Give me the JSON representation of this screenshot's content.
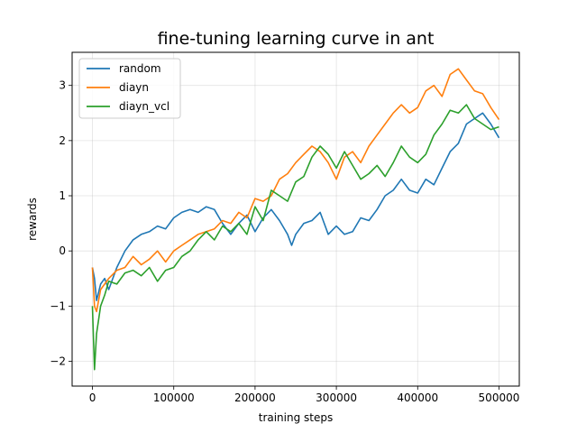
{
  "chart_data": {
    "type": "line",
    "title": "fine-tuning learning curve in ant",
    "xlabel": "training steps",
    "ylabel": "rewards",
    "xlim": [
      -25000,
      525000
    ],
    "ylim": [
      -2.45,
      3.6
    ],
    "xticks": [
      0,
      100000,
      200000,
      300000,
      400000,
      500000
    ],
    "yticks": [
      -2,
      -1,
      0,
      1,
      2,
      3
    ],
    "grid": true,
    "legend_position": "top-left",
    "series": [
      {
        "name": "random",
        "color": "#1f77b4",
        "x": [
          0,
          2500,
          5000,
          10000,
          15000,
          20000,
          30000,
          40000,
          50000,
          60000,
          70000,
          80000,
          90000,
          100000,
          110000,
          120000,
          130000,
          140000,
          150000,
          160000,
          170000,
          180000,
          190000,
          200000,
          210000,
          220000,
          230000,
          240000,
          245000,
          250000,
          260000,
          270000,
          280000,
          290000,
          300000,
          310000,
          320000,
          330000,
          340000,
          350000,
          360000,
          370000,
          380000,
          390000,
          400000,
          410000,
          420000,
          430000,
          440000,
          450000,
          460000,
          470000,
          480000,
          490000,
          500000
        ],
        "y": [
          -0.3,
          -0.5,
          -0.9,
          -0.6,
          -0.5,
          -0.7,
          -0.3,
          0.0,
          0.2,
          0.3,
          0.35,
          0.45,
          0.4,
          0.6,
          0.7,
          0.75,
          0.7,
          0.8,
          0.75,
          0.5,
          0.3,
          0.5,
          0.65,
          0.35,
          0.6,
          0.75,
          0.55,
          0.3,
          0.1,
          0.3,
          0.5,
          0.55,
          0.7,
          0.3,
          0.45,
          0.3,
          0.35,
          0.6,
          0.55,
          0.75,
          1.0,
          1.1,
          1.3,
          1.1,
          1.05,
          1.3,
          1.2,
          1.5,
          1.8,
          1.95,
          2.3,
          2.4,
          2.5,
          2.3,
          2.05
        ]
      },
      {
        "name": "diayn",
        "color": "#ff7f0e",
        "x": [
          0,
          2500,
          5000,
          10000,
          15000,
          20000,
          30000,
          40000,
          50000,
          60000,
          70000,
          80000,
          90000,
          100000,
          110000,
          120000,
          130000,
          140000,
          150000,
          160000,
          170000,
          180000,
          190000,
          200000,
          210000,
          220000,
          230000,
          240000,
          250000,
          260000,
          270000,
          280000,
          290000,
          300000,
          310000,
          320000,
          330000,
          340000,
          350000,
          360000,
          370000,
          380000,
          390000,
          400000,
          410000,
          420000,
          430000,
          440000,
          450000,
          460000,
          470000,
          480000,
          490000,
          500000
        ],
        "y": [
          -0.3,
          -1.0,
          -1.1,
          -0.7,
          -0.6,
          -0.5,
          -0.35,
          -0.3,
          -0.1,
          -0.25,
          -0.15,
          0.0,
          -0.2,
          0.0,
          0.1,
          0.2,
          0.3,
          0.35,
          0.4,
          0.55,
          0.5,
          0.7,
          0.6,
          0.95,
          0.9,
          1.0,
          1.3,
          1.4,
          1.6,
          1.75,
          1.9,
          1.8,
          1.6,
          1.3,
          1.7,
          1.8,
          1.6,
          1.9,
          2.1,
          2.3,
          2.5,
          2.65,
          2.5,
          2.6,
          2.9,
          3.0,
          2.8,
          3.2,
          3.3,
          3.1,
          2.9,
          2.85,
          2.6,
          2.38
        ]
      },
      {
        "name": "diayn_vcl",
        "color": "#2ca02c",
        "x": [
          0,
          2500,
          5000,
          10000,
          15000,
          20000,
          30000,
          40000,
          50000,
          60000,
          70000,
          80000,
          90000,
          100000,
          110000,
          120000,
          130000,
          140000,
          150000,
          160000,
          170000,
          180000,
          190000,
          200000,
          210000,
          220000,
          230000,
          240000,
          250000,
          260000,
          270000,
          280000,
          290000,
          300000,
          310000,
          320000,
          330000,
          340000,
          350000,
          360000,
          370000,
          380000,
          390000,
          400000,
          410000,
          420000,
          430000,
          440000,
          450000,
          460000,
          470000,
          480000,
          490000,
          500000
        ],
        "y": [
          -1.0,
          -2.15,
          -1.5,
          -1.0,
          -0.8,
          -0.55,
          -0.6,
          -0.4,
          -0.35,
          -0.45,
          -0.3,
          -0.55,
          -0.35,
          -0.3,
          -0.1,
          0.0,
          0.2,
          0.35,
          0.2,
          0.45,
          0.35,
          0.5,
          0.3,
          0.8,
          0.55,
          1.1,
          1.0,
          0.9,
          1.25,
          1.35,
          1.7,
          1.9,
          1.75,
          1.5,
          1.8,
          1.55,
          1.3,
          1.4,
          1.55,
          1.35,
          1.6,
          1.9,
          1.7,
          1.6,
          1.75,
          2.1,
          2.3,
          2.55,
          2.5,
          2.65,
          2.4,
          2.3,
          2.2,
          2.25
        ]
      }
    ]
  }
}
